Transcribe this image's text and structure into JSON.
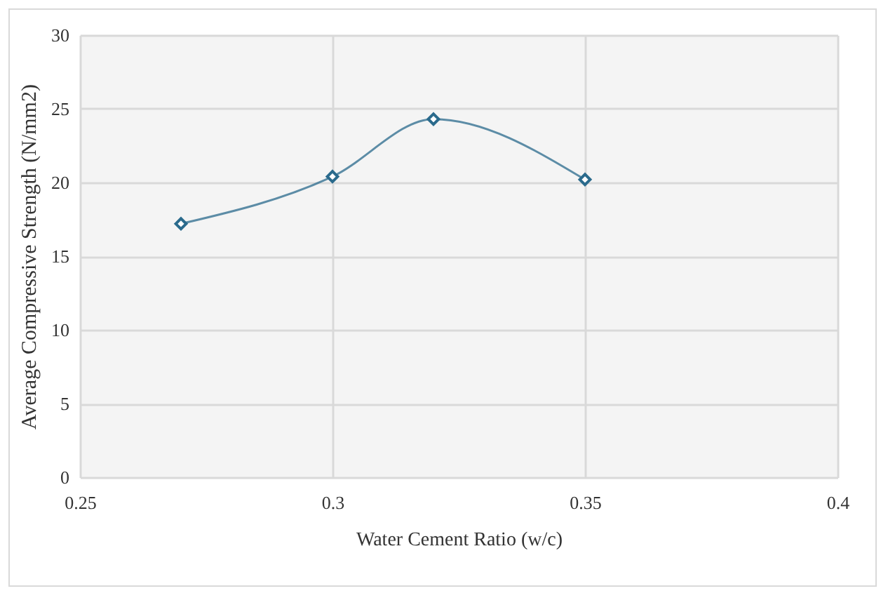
{
  "chart_data": {
    "type": "line",
    "xlabel": "Water Cement Ratio (w/c)",
    "ylabel": "Average  Compressive Strength  (N/mm2)",
    "x": [
      0.27,
      0.3,
      0.32,
      0.35
    ],
    "series": [
      {
        "color": "#2a6a8c",
        "values": [
          17.2,
          20.4,
          24.3,
          20.2
        ]
      }
    ],
    "xlim": [
      0.25,
      0.4
    ],
    "xticks": [
      0.25,
      0.3,
      0.35,
      0.4
    ],
    "ylim": [
      0,
      30
    ],
    "yticks": [
      0,
      5,
      10,
      15,
      20,
      25,
      30
    ],
    "grid": true,
    "marker": "diamond",
    "legend": false
  }
}
